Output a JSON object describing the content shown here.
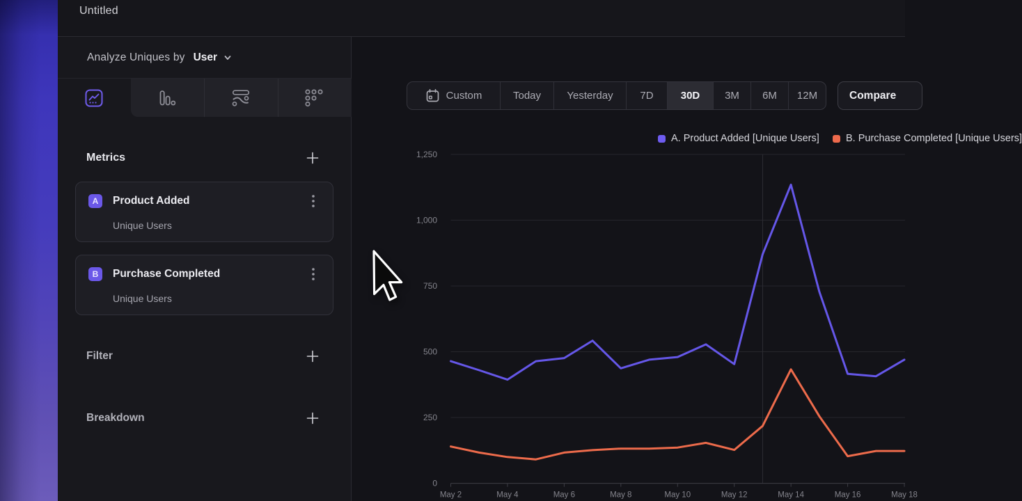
{
  "window": {
    "title": "Untitled"
  },
  "builder": {
    "analyze": {
      "label": "Analyze Uniques by",
      "value": "User",
      "chevron_icon": "chevron-down-icon"
    },
    "tabs": [
      {
        "id": "insights",
        "icon": "insights-line-icon",
        "selected": true
      },
      {
        "id": "bars",
        "icon": "bar-chart-icon",
        "selected": false
      },
      {
        "id": "flows",
        "icon": "flows-icon",
        "selected": false
      },
      {
        "id": "retention",
        "icon": "retention-dots-icon",
        "selected": false
      }
    ],
    "metrics": {
      "title": "Metrics",
      "add_icon": "plus-icon",
      "items": [
        {
          "letter": "A",
          "name": "Product Added",
          "sub": "Unique Users",
          "menu_icon": "kebab-icon"
        },
        {
          "letter": "B",
          "name": "Purchase Completed",
          "sub": "Unique Users",
          "menu_icon": "kebab-icon"
        }
      ]
    },
    "sections": [
      {
        "id": "filter",
        "label": "Filter",
        "add_icon": "plus-icon"
      },
      {
        "id": "breakdown",
        "label": "Breakdown",
        "add_icon": "plus-icon"
      }
    ]
  },
  "toolbar": {
    "ranges": [
      "Custom",
      "Today",
      "Yesterday",
      "7D",
      "30D",
      "3M",
      "6M",
      "12M"
    ],
    "selected": "30D",
    "calendar_icon": "calendar-icon",
    "compare_label": "Compare"
  },
  "colors": {
    "accent_purple": "#6e5cf0",
    "line_purple": "#6557e8",
    "accent_orange": "#ee6a4c",
    "line_orange": "#ed6b4b"
  },
  "chart_data": {
    "type": "line",
    "title": "",
    "xlabel": "",
    "ylabel": "",
    "x": [
      "May 2",
      "May 3",
      "May 4",
      "May 5",
      "May 6",
      "May 7",
      "May 8",
      "May 9",
      "May 10",
      "May 11",
      "May 12",
      "May 13",
      "May 14",
      "May 15",
      "May 16",
      "May 17",
      "May 18"
    ],
    "x_tick_labels": [
      "May 2",
      "May 4",
      "May 6",
      "May 8",
      "May 10",
      "May 12",
      "May 14",
      "May 16",
      "May 18"
    ],
    "series": [
      {
        "name": "A. Product Added [Unique Users]",
        "color": "#6557e8",
        "values": [
          464,
          430,
          394,
          464,
          476,
          542,
          437,
          470,
          480,
          528,
          453,
          870,
          1135,
          728,
          416,
          407,
          470
        ]
      },
      {
        "name": "B. Purchase Completed [Unique Users]",
        "color": "#ed6b4b",
        "values": [
          140,
          117,
          100,
          91,
          117,
          126,
          132,
          132,
          136,
          154,
          127,
          218,
          433,
          255,
          103,
          123,
          123
        ]
      }
    ],
    "ylim": [
      0,
      1250
    ],
    "yticks": [
      0,
      250,
      500,
      750,
      1000,
      1250
    ],
    "ytick_labels": [
      "0",
      "250",
      "500",
      "750",
      "1,000",
      "1,250"
    ],
    "grid": "horizontal",
    "vertical_marker_x": "May 13",
    "legend_position": "top-right"
  }
}
